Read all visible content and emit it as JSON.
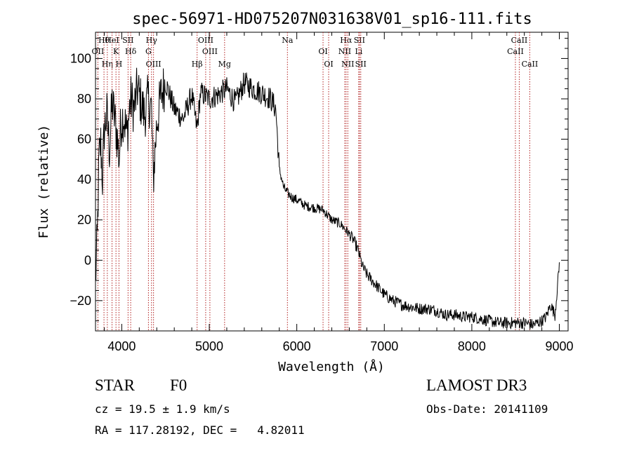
{
  "chart_data": {
    "type": "line",
    "title": "spec-56971-HD075207N031638V01_sp16-111.fits",
    "xlabel": "Wavelength (Å)",
    "ylabel": "Flux (relative)",
    "xlim": [
      3700,
      9100
    ],
    "ylim": [
      -35,
      113
    ],
    "xticks": [
      4000,
      5000,
      6000,
      7000,
      8000,
      9000
    ],
    "yticks": [
      -20,
      0,
      20,
      40,
      60,
      80,
      100
    ],
    "grid": false,
    "series": [
      {
        "name": "flux",
        "color": "#000000",
        "x": [
          3700,
          3720,
          3740,
          3760,
          3780,
          3800,
          3830,
          3860,
          3890,
          3920,
          3950,
          3970,
          3990,
          4020,
          4060,
          4100,
          4140,
          4180,
          4220,
          4260,
          4300,
          4340,
          4360,
          4400,
          4450,
          4500,
          4600,
          4700,
          4800,
          4860,
          4900,
          5000,
          5100,
          5200,
          5300,
          5400,
          5500,
          5600,
          5700,
          5760,
          5800,
          5830,
          5850,
          5900,
          5950,
          6000,
          6100,
          6200,
          6300,
          6400,
          6500,
          6560,
          6600,
          6650,
          6700,
          6750,
          6800,
          6900,
          7000,
          7100,
          7200,
          7300,
          7400,
          7500,
          7600,
          7700,
          7800,
          7900,
          8000,
          8100,
          8200,
          8300,
          8400,
          8500,
          8600,
          8700,
          8800,
          8850,
          8900,
          8950,
          9000
        ],
        "values": [
          -10,
          10,
          50,
          58,
          40,
          65,
          72,
          55,
          78,
          70,
          60,
          50,
          68,
          72,
          62,
          80,
          75,
          85,
          78,
          72,
          80,
          75,
          40,
          68,
          82,
          88,
          75,
          70,
          82,
          65,
          83,
          80,
          82,
          85,
          78,
          88,
          85,
          83,
          80,
          75,
          45,
          40,
          36,
          33,
          31,
          30,
          27,
          26,
          25,
          20,
          18,
          15,
          13,
          10,
          5,
          -3,
          -7,
          -12,
          -17,
          -20,
          -22,
          -23,
          -24,
          -24,
          -25,
          -27,
          -27,
          -28,
          -28,
          -29,
          -30,
          -31,
          -31,
          -31,
          -31,
          -32,
          -30,
          -28,
          -22,
          -27,
          -2
        ]
      }
    ],
    "lines": [
      {
        "name": "Hθ",
        "wl": 3797
      },
      {
        "name": "OII",
        "wl": 3727
      },
      {
        "name": "Hη",
        "wl": 3835
      },
      {
        "name": "HeI",
        "wl": 3889
      },
      {
        "name": "K",
        "wl": 3934
      },
      {
        "name": "H",
        "wl": 3968
      },
      {
        "name": "SII",
        "wl": 4072
      },
      {
        "name": "Hδ",
        "wl": 4102
      },
      {
        "name": "OIII",
        "wl": 4363
      },
      {
        "name": "Hγ",
        "wl": 4340
      },
      {
        "name": "G",
        "wl": 4305
      },
      {
        "name": "Hβ",
        "wl": 4861
      },
      {
        "name": "OIII",
        "wl": 4959
      },
      {
        "name": "OIII",
        "wl": 5007
      },
      {
        "name": "Mg",
        "wl": 5175
      },
      {
        "name": "Na",
        "wl": 5893
      },
      {
        "name": "OI",
        "wl": 6300
      },
      {
        "name": "OI",
        "wl": 6364
      },
      {
        "name": "Hα",
        "wl": 6563
      },
      {
        "name": "NII",
        "wl": 6548
      },
      {
        "name": "NII",
        "wl": 6583
      },
      {
        "name": "SII",
        "wl": 6716
      },
      {
        "name": "Li",
        "wl": 6708
      },
      {
        "name": "SII",
        "wl": 6731
      },
      {
        "name": "CaII",
        "wl": 8542
      },
      {
        "name": "CaII",
        "wl": 8498
      },
      {
        "name": "CaII",
        "wl": 8662
      }
    ]
  },
  "info": {
    "class_label": "STAR",
    "subclass": "F0",
    "survey": "LAMOST DR3",
    "redshift": "cz = 19.5 ± 1.9 km/s",
    "obs_date": "Obs-Date: 20141109",
    "coords": "RA = 117.28192, DEC =   4.82011"
  }
}
